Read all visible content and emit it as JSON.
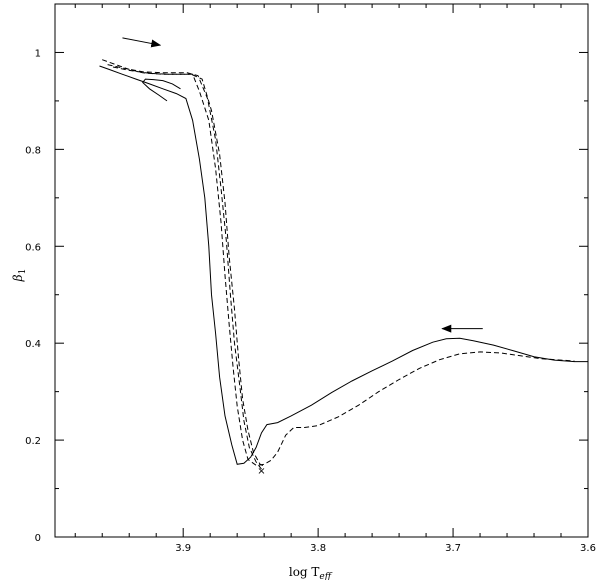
{
  "chart_data": {
    "type": "line",
    "title": "",
    "xlabel": {
      "text": "log T",
      "sub": "eff"
    },
    "ylabel": {
      "text": "β",
      "sub": "1"
    },
    "xlim": [
      3.995,
      3.6
    ],
    "ylim": [
      0,
      1.1
    ],
    "x_reversed": true,
    "grid": false,
    "legend": "none",
    "x_ticks": [
      3.9,
      3.8,
      3.7,
      3.6
    ],
    "x_tick_labels": [
      "3.9",
      "3.8",
      "3.7",
      "3.6"
    ],
    "y_ticks": [
      0,
      0.2,
      0.4,
      0.6,
      0.8,
      1.0
    ],
    "y_tick_labels": [
      "0",
      "0.2",
      "0.4",
      "0.6",
      "0.8",
      "1"
    ],
    "series": [
      {
        "style": "solid",
        "color": "#000000",
        "points": [
          [
            3.962,
            0.972
          ],
          [
            3.955,
            0.965
          ],
          [
            3.945,
            0.955
          ],
          [
            3.935,
            0.945
          ],
          [
            3.925,
            0.935
          ],
          [
            3.915,
            0.925
          ],
          [
            3.905,
            0.915
          ],
          [
            3.898,
            0.905
          ],
          [
            3.893,
            0.86
          ],
          [
            3.888,
            0.78
          ],
          [
            3.884,
            0.7
          ],
          [
            3.881,
            0.6
          ],
          [
            3.879,
            0.5
          ],
          [
            3.876,
            0.42
          ],
          [
            3.873,
            0.33
          ],
          [
            3.869,
            0.25
          ],
          [
            3.864,
            0.19
          ],
          [
            3.86,
            0.15
          ],
          [
            3.855,
            0.152
          ],
          [
            3.85,
            0.165
          ],
          [
            3.846,
            0.185
          ],
          [
            3.842,
            0.215
          ],
          [
            3.838,
            0.232
          ],
          [
            3.83,
            0.236
          ],
          [
            3.82,
            0.25
          ],
          [
            3.805,
            0.272
          ],
          [
            3.79,
            0.298
          ],
          [
            3.775,
            0.322
          ],
          [
            3.76,
            0.343
          ],
          [
            3.745,
            0.363
          ],
          [
            3.73,
            0.385
          ],
          [
            3.715,
            0.402
          ],
          [
            3.705,
            0.409
          ],
          [
            3.695,
            0.41
          ],
          [
            3.685,
            0.405
          ],
          [
            3.67,
            0.396
          ],
          [
            3.655,
            0.384
          ],
          [
            3.64,
            0.372
          ],
          [
            3.625,
            0.365
          ],
          [
            3.61,
            0.362
          ],
          [
            3.6,
            0.362
          ]
        ]
      },
      {
        "style": "solid",
        "color": "#000000",
        "points": [
          [
            3.912,
            0.9
          ],
          [
            3.918,
            0.912
          ],
          [
            3.925,
            0.925
          ],
          [
            3.93,
            0.938
          ],
          [
            3.928,
            0.945
          ],
          [
            3.922,
            0.944
          ],
          [
            3.915,
            0.942
          ],
          [
            3.908,
            0.935
          ],
          [
            3.902,
            0.925
          ]
        ]
      },
      {
        "style": "dashed",
        "color": "#000000",
        "points": [
          [
            3.96,
            0.985
          ],
          [
            3.95,
            0.975
          ],
          [
            3.94,
            0.965
          ],
          [
            3.93,
            0.958
          ],
          [
            3.915,
            0.955
          ],
          [
            3.9,
            0.955
          ],
          [
            3.893,
            0.955
          ],
          [
            3.888,
            0.92
          ],
          [
            3.881,
            0.86
          ],
          [
            3.876,
            0.76
          ],
          [
            3.872,
            0.65
          ],
          [
            3.869,
            0.54
          ],
          [
            3.866,
            0.44
          ],
          [
            3.863,
            0.35
          ],
          [
            3.86,
            0.27
          ],
          [
            3.856,
            0.2
          ],
          [
            3.852,
            0.16
          ],
          [
            3.846,
            0.148
          ],
          [
            3.84,
            0.15
          ],
          [
            3.835,
            0.158
          ],
          [
            3.83,
            0.175
          ],
          [
            3.824,
            0.21
          ],
          [
            3.818,
            0.226
          ],
          [
            3.81,
            0.226
          ],
          [
            3.8,
            0.23
          ],
          [
            3.785,
            0.248
          ],
          [
            3.77,
            0.272
          ],
          [
            3.755,
            0.3
          ],
          [
            3.74,
            0.325
          ],
          [
            3.725,
            0.348
          ],
          [
            3.71,
            0.366
          ],
          [
            3.695,
            0.378
          ],
          [
            3.68,
            0.382
          ],
          [
            3.665,
            0.38
          ],
          [
            3.65,
            0.374
          ],
          [
            3.635,
            0.368
          ],
          [
            3.62,
            0.365
          ],
          [
            3.61,
            0.363
          ]
        ]
      },
      {
        "style": "dashed",
        "color": "#000000",
        "points": [
          [
            3.956,
            0.975
          ],
          [
            3.945,
            0.968
          ],
          [
            3.93,
            0.96
          ],
          [
            3.915,
            0.958
          ],
          [
            3.897,
            0.958
          ],
          [
            3.889,
            0.952
          ],
          [
            3.882,
            0.905
          ],
          [
            3.876,
            0.82
          ],
          [
            3.872,
            0.72
          ],
          [
            3.868,
            0.61
          ],
          [
            3.865,
            0.5
          ],
          [
            3.862,
            0.4
          ],
          [
            3.858,
            0.31
          ],
          [
            3.855,
            0.24
          ],
          [
            3.851,
            0.185
          ],
          [
            3.846,
            0.155
          ],
          [
            3.842,
            0.14
          ]
        ]
      },
      {
        "style": "dashed",
        "color": "#000000",
        "points": [
          [
            3.952,
            0.97
          ],
          [
            3.94,
            0.963
          ],
          [
            3.925,
            0.957
          ],
          [
            3.91,
            0.955
          ],
          [
            3.894,
            0.955
          ],
          [
            3.886,
            0.945
          ],
          [
            3.879,
            0.88
          ],
          [
            3.873,
            0.79
          ],
          [
            3.869,
            0.69
          ],
          [
            3.866,
            0.58
          ],
          [
            3.862,
            0.47
          ],
          [
            3.859,
            0.37
          ],
          [
            3.856,
            0.285
          ],
          [
            3.852,
            0.22
          ],
          [
            3.848,
            0.175
          ],
          [
            3.843,
            0.15
          ],
          [
            3.839,
            0.145
          ]
        ]
      }
    ],
    "markers": [
      {
        "symbol": "×",
        "x": 3.842,
        "y": 0.138
      }
    ],
    "annotations": [
      {
        "type": "arrow",
        "from": [
          3.945,
          1.03
        ],
        "to": [
          3.917,
          1.015
        ]
      },
      {
        "type": "arrow",
        "from": [
          3.678,
          0.43
        ],
        "to": [
          3.708,
          0.43
        ]
      }
    ]
  }
}
